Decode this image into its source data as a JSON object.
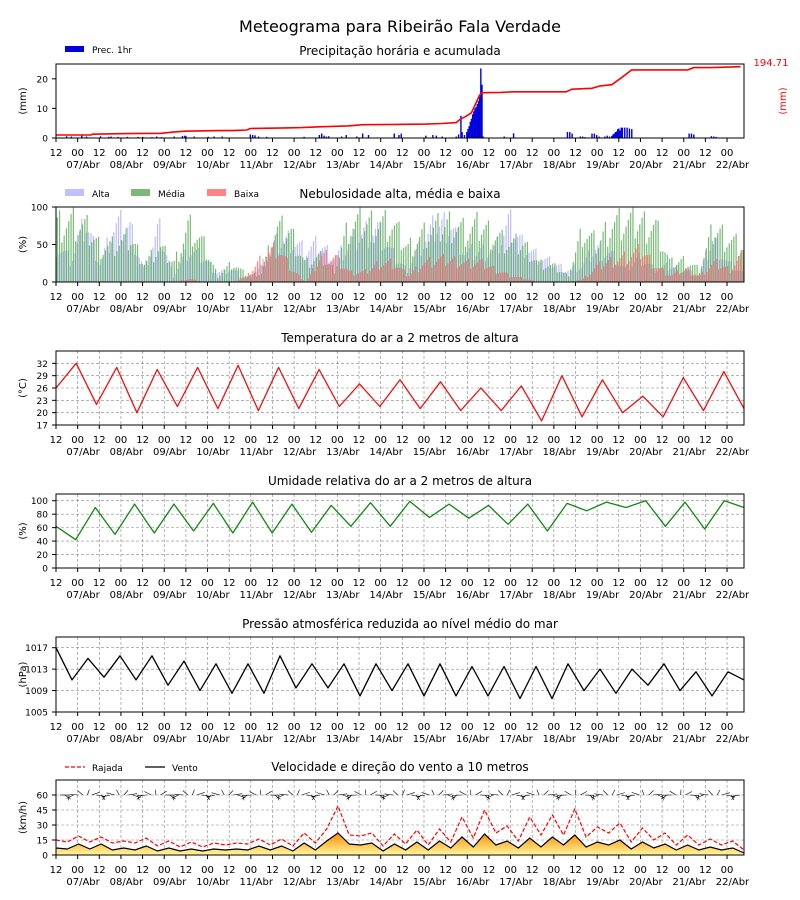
{
  "title": "Meteograma para Ribeirão Fala Verdade",
  "colors": {
    "precip_bar": "#0000dd",
    "precip_accum": "#ff0000",
    "cloud_high": "#b0b0ff",
    "cloud_mid": "#55aa55",
    "cloud_low": "#ff6666",
    "temperature": "#ee1111",
    "humidity": "#118811",
    "pressure": "#000000",
    "gust": "#ff0000",
    "wind": "#000000",
    "grid": "#888888"
  },
  "x_axis": {
    "time_ticks": [
      "12",
      "00",
      "12",
      "00",
      "12",
      "00",
      "12",
      "00",
      "12",
      "00",
      "12",
      "00",
      "12",
      "00",
      "12",
      "00",
      "12",
      "00",
      "12",
      "00",
      "12",
      "00",
      "12",
      "00",
      "12",
      "00",
      "12",
      "00",
      "12",
      "00",
      "12",
      "00"
    ],
    "dates": [
      "07/Abr",
      "08/Abr",
      "09/Abr",
      "10/Abr",
      "11/Abr",
      "12/Abr",
      "13/Abr",
      "14/Abr",
      "15/Abr",
      "16/Abr",
      "17/Abr",
      "18/Abr",
      "19/Abr",
      "20/Abr",
      "21/Abr",
      "22/Abr"
    ]
  },
  "chart_data": [
    {
      "type": "bar",
      "title": "Precipitação horária e acumulada",
      "ylabel": "(mm)",
      "ylabel_right": "(mm)",
      "ylim": [
        0,
        25
      ],
      "yticks": [
        "0",
        "10",
        "20"
      ],
      "accum_total_label": "194.71",
      "legend": [
        {
          "name": "Prec. 1hr",
          "color": "#0000dd"
        }
      ],
      "series": [
        {
          "name": "Prec. 1hr",
          "points": [
            [
              9,
              0.6
            ],
            [
              13,
              0.5
            ],
            [
              22,
              0.8
            ],
            [
              26,
              0.5
            ],
            [
              38,
              0.6
            ],
            [
              45,
              0.4
            ],
            [
              47,
              0.5
            ],
            [
              53,
              0.4
            ],
            [
              61,
              0.4
            ],
            [
              70,
              0.4
            ],
            [
              74,
              0.4
            ],
            [
              82,
              0.3
            ],
            [
              86,
              0.5
            ],
            [
              90,
              0.3
            ],
            [
              101,
              0.5
            ],
            [
              108,
              0.7
            ],
            [
              110,
              0.8
            ],
            [
              111,
              0.6
            ],
            [
              118,
              0.5
            ],
            [
              130,
              0.4
            ],
            [
              135,
              0.5
            ],
            [
              142,
              0.5
            ],
            [
              166,
              1.2
            ],
            [
              168,
              1.0
            ],
            [
              170,
              0.9
            ],
            [
              173,
              0.5
            ],
            [
              180,
              0.4
            ],
            [
              212,
              0.4
            ],
            [
              225,
              1.0
            ],
            [
              227,
              1.5
            ],
            [
              229,
              0.8
            ],
            [
              231,
              0.5
            ],
            [
              233,
              0.6
            ],
            [
              244,
              0.5
            ],
            [
              248,
              1.0
            ],
            [
              257,
              0.5
            ],
            [
              262,
              1.5
            ],
            [
              267,
              1.0
            ],
            [
              289,
              1.5
            ],
            [
              293,
              1.0
            ],
            [
              295,
              1.5
            ],
            [
              316,
              0.8
            ],
            [
              322,
              1.0
            ],
            [
              325,
              0.8
            ],
            [
              330,
              0.5
            ],
            [
              342,
              0.5
            ],
            [
              344,
              1.2
            ],
            [
              346,
              7.5
            ],
            [
              347,
              2.0
            ],
            [
              349,
              1.0
            ],
            [
              351,
              2.0
            ],
            [
              352,
              3.0
            ],
            [
              353,
              4.0
            ],
            [
              354,
              5.5
            ],
            [
              355,
              6.5
            ],
            [
              356,
              8.0
            ],
            [
              357,
              9.0
            ],
            [
              358,
              10.0
            ],
            [
              359,
              10.5
            ],
            [
              360,
              11.5
            ],
            [
              361,
              12.5
            ],
            [
              362,
              14.0
            ],
            [
              363,
              23.5
            ],
            [
              364,
              18.0
            ],
            [
              365,
              0.5
            ],
            [
              383,
              0.5
            ],
            [
              391,
              1.6
            ],
            [
              437,
              2.0
            ],
            [
              439,
              2.0
            ],
            [
              441,
              1.5
            ],
            [
              448,
              0.5
            ],
            [
              450,
              0.5
            ],
            [
              452,
              0.3
            ],
            [
              458,
              1.5
            ],
            [
              460,
              1.5
            ],
            [
              462,
              1.0
            ],
            [
              464,
              0.5
            ],
            [
              469,
              0.5
            ],
            [
              471,
              0.8
            ],
            [
              473,
              0.5
            ],
            [
              475,
              0.7
            ],
            [
              476,
              1.2
            ],
            [
              477,
              1.5
            ],
            [
              478,
              2.0
            ],
            [
              479,
              2.2
            ],
            [
              480,
              3.0
            ],
            [
              481,
              3.2
            ],
            [
              482,
              2.5
            ],
            [
              483,
              3.5
            ],
            [
              484,
              3.5
            ],
            [
              486,
              3.5
            ],
            [
              488,
              3.5
            ],
            [
              490,
              3.2
            ],
            [
              492,
              3.0
            ],
            [
              541,
              1.5
            ],
            [
              543,
              1.5
            ],
            [
              545,
              1.2
            ],
            [
              560,
              0.6
            ],
            [
              562,
              0.5
            ],
            [
              564,
              0.4
            ]
          ]
        },
        {
          "name": "acumulada",
          "points": [
            [
              0,
              1
            ],
            [
              30,
              1
            ],
            [
              31,
              1.3
            ],
            [
              60,
              1.5
            ],
            [
              90,
              1.6
            ],
            [
              100,
              2
            ],
            [
              110,
              2.3
            ],
            [
              140,
              2.5
            ],
            [
              150,
              2.5
            ],
            [
              163,
              2.7
            ],
            [
              166,
              3.2
            ],
            [
              196,
              3.4
            ],
            [
              210,
              3.5
            ],
            [
              225,
              3.8
            ],
            [
              250,
              4.1
            ],
            [
              262,
              4.5
            ],
            [
              290,
              4.6
            ],
            [
              316,
              4.7
            ],
            [
              330,
              4.9
            ],
            [
              342,
              5.2
            ],
            [
              346,
              6.5
            ],
            [
              350,
              7.2
            ],
            [
              355,
              8.5
            ],
            [
              358,
              11
            ],
            [
              362,
              14.5
            ],
            [
              364,
              15.3
            ],
            [
              380,
              15.4
            ],
            [
              391,
              15.6
            ],
            [
              420,
              15.6
            ],
            [
              436,
              15.6
            ],
            [
              441,
              16.5
            ],
            [
              458,
              16.8
            ],
            [
              465,
              17.6
            ],
            [
              475,
              18.0
            ],
            [
              482,
              20
            ],
            [
              492,
              23
            ],
            [
              520,
              23
            ],
            [
              540,
              23
            ],
            [
              545,
              23.8
            ],
            [
              560,
              23.8
            ],
            [
              585,
              24.1
            ]
          ]
        }
      ]
    },
    {
      "type": "bar",
      "title": "Nebulosidade alta, média e baixa",
      "ylabel": "(%)",
      "ylim": [
        0,
        100
      ],
      "yticks": [
        "0",
        "50",
        "100"
      ],
      "legend": [
        {
          "name": "Alta",
          "color": "#b0b0ff"
        },
        {
          "name": "Média",
          "color": "#55aa55"
        },
        {
          "name": "Baixa",
          "color": "#ff6666"
        }
      ],
      "series": [
        {
          "name": "Alta",
          "values": [
            60,
            35,
            95,
            30,
            90,
            90,
            20,
            85,
            10,
            50,
            40,
            15,
            20,
            5,
            25,
            60,
            70,
            50,
            60,
            40,
            55,
            80,
            85,
            45,
            20,
            60,
            90,
            95,
            45,
            50,
            50,
            95,
            60,
            40,
            30,
            20,
            25,
            55,
            45,
            20,
            40,
            20,
            25,
            20,
            10,
            70,
            30,
            15
          ]
        },
        {
          "name": "Média",
          "values": [
            95,
            97,
            85,
            55,
            60,
            70,
            30,
            55,
            30,
            90,
            60,
            10,
            30,
            10,
            15,
            85,
            80,
            30,
            40,
            20,
            90,
            95,
            95,
            90,
            55,
            75,
            85,
            95,
            80,
            90,
            75,
            60,
            60,
            30,
            25,
            10,
            80,
            60,
            95,
            95,
            95,
            90,
            30,
            35,
            20,
            85,
            70,
            55
          ]
        },
        {
          "name": "Baixa",
          "values": [
            0,
            0,
            0,
            0,
            0,
            0,
            0,
            0,
            0,
            5,
            0,
            0,
            0,
            10,
            40,
            55,
            20,
            0,
            40,
            40,
            15,
            15,
            30,
            30,
            10,
            30,
            35,
            35,
            30,
            30,
            20,
            10,
            5,
            0,
            0,
            0,
            5,
            25,
            35,
            40,
            50,
            25,
            10,
            20,
            10,
            30,
            20,
            45
          ]
        }
      ]
    },
    {
      "type": "line",
      "title": "Temperatura do ar a 2 metros de altura",
      "ylabel": "(°C)",
      "ylim": [
        17,
        35
      ],
      "yticks": [
        "17",
        "20",
        "23",
        "26",
        "29",
        "32"
      ],
      "series": [
        {
          "name": "",
          "values": [
            26,
            32,
            22,
            31,
            20,
            30.5,
            21.5,
            31,
            21,
            31.5,
            20.5,
            31,
            21,
            30.5,
            21.5,
            27,
            21.5,
            28,
            21,
            27.5,
            20.5,
            26,
            20.5,
            26.5,
            18,
            29,
            19,
            28,
            20,
            24,
            19,
            28.5,
            20.5,
            30,
            21
          ]
        }
      ]
    },
    {
      "type": "line",
      "title": "Umidade relativa do ar a 2 metros de altura",
      "ylabel": "(%)",
      "ylim": [
        0,
        110
      ],
      "yticks": [
        "0",
        "20",
        "40",
        "60",
        "80",
        "100"
      ],
      "series": [
        {
          "name": "",
          "values": [
            62,
            42,
            90,
            50,
            95,
            52,
            95,
            55,
            96,
            52,
            98,
            52,
            95,
            53,
            93,
            62,
            97,
            62,
            99,
            75,
            95,
            74,
            93,
            65,
            95,
            55,
            96,
            85,
            98,
            90,
            100,
            62,
            98,
            58,
            100,
            90
          ]
        }
      ]
    },
    {
      "type": "line",
      "title": "Pressão atmosférica reduzida ao nível médio do mar",
      "ylabel": "(hPa)",
      "ylim": [
        1005,
        1019
      ],
      "yticks": [
        "1005",
        "1009",
        "1013",
        "1017"
      ],
      "series": [
        {
          "name": "",
          "values": [
            1017,
            1011,
            1015,
            1011.5,
            1015.5,
            1011,
            1015.5,
            1010,
            1014.5,
            1009,
            1014,
            1008.5,
            1014,
            1008.5,
            1015.5,
            1009.5,
            1014,
            1009.5,
            1014,
            1008,
            1014,
            1009,
            1014,
            1008,
            1014,
            1008,
            1013.5,
            1008,
            1013.5,
            1007.5,
            1013.5,
            1007.5,
            1014,
            1009,
            1013,
            1008.5,
            1013,
            1010,
            1014,
            1009,
            1012.5,
            1008,
            1012.5,
            1011
          ]
        }
      ]
    },
    {
      "type": "line",
      "title": "Velocidade e direção do vento a 10 metros",
      "ylabel": "(km/h)",
      "ylim": [
        0,
        75
      ],
      "yticks": [
        "0",
        "15",
        "30",
        "45",
        "60"
      ],
      "legend": [
        {
          "name": "Rajada",
          "color": "#ff0000",
          "style": "dashed"
        },
        {
          "name": "Vento",
          "color": "#000000",
          "style": "solid"
        }
      ],
      "series": [
        {
          "name": "Rajada",
          "values": [
            15,
            13,
            19,
            13,
            18,
            12,
            14,
            12,
            17,
            9,
            14,
            8,
            13,
            8,
            12,
            10,
            12,
            11,
            16,
            10,
            16,
            9,
            22,
            12,
            26,
            49,
            20,
            19,
            22,
            9,
            21,
            11,
            25,
            10,
            26,
            13,
            38,
            17,
            45,
            22,
            29,
            14,
            38,
            20,
            40,
            20,
            46,
            18,
            28,
            22,
            32,
            13,
            27,
            15,
            22,
            10,
            20,
            10,
            16,
            10,
            14,
            5
          ]
        },
        {
          "name": "Vento",
          "values": [
            7,
            6,
            11,
            6,
            11,
            5,
            7,
            5,
            9,
            4,
            7,
            4,
            6,
            4,
            6,
            5,
            6,
            5,
            9,
            5,
            9,
            4,
            12,
            5,
            14,
            22,
            11,
            10,
            12,
            4,
            11,
            5,
            13,
            5,
            14,
            7,
            18,
            8,
            21,
            10,
            14,
            7,
            17,
            8,
            18,
            10,
            20,
            8,
            13,
            10,
            15,
            6,
            13,
            7,
            11,
            5,
            10,
            5,
            8,
            5,
            7,
            2
          ]
        }
      ]
    }
  ]
}
